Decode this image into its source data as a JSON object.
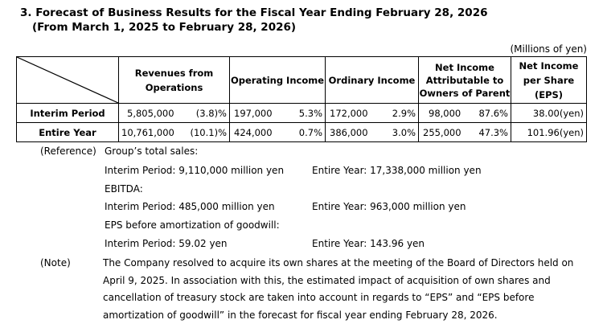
{
  "heading": {
    "line1": "3. Forecast of Business Results for the Fiscal Year Ending February 28, 2026",
    "line2": "(From March 1, 2025 to February 28, 2026)"
  },
  "unit_label": "(Millions of yen)",
  "table": {
    "headers": {
      "revenues": [
        "Revenues from",
        "Operations"
      ],
      "operating_income": "Operating Income",
      "ordinary_income": "Ordinary Income",
      "net_income": [
        "Net Income",
        "Attributable to",
        "Owners of Parent"
      ],
      "eps": [
        "Net Income",
        "per Share",
        "(EPS)"
      ]
    },
    "rows": [
      {
        "label": "Interim Period",
        "revenues": "5,805,000",
        "revenues_pct": "(3.8)%",
        "operating": "197,000",
        "operating_pct": "5.3%",
        "ordinary": "172,000",
        "ordinary_pct": "2.9%",
        "net": "98,000",
        "net_pct": "87.6%",
        "eps": "38.00(yen)"
      },
      {
        "label": "Entire Year",
        "revenues": "10,761,000",
        "revenues_pct": "(10.1)%",
        "operating": "424,000",
        "operating_pct": "0.7%",
        "ordinary": "386,000",
        "ordinary_pct": "3.0%",
        "net": "255,000",
        "net_pct": "47.3%",
        "eps": "101.96(yen)"
      }
    ]
  },
  "reference": {
    "tag": "(Reference)",
    "group_sales_title": "Group’s total sales:",
    "group_sales_interim": "Interim Period: 9,110,000 million yen",
    "group_sales_year": "Entire Year: 17,338,000 million yen",
    "ebitda_title": "EBITDA:",
    "ebitda_interim": "Interim Period: 485,000 million yen",
    "ebitda_year": "Entire Year: 963,000 million yen",
    "eps_goodwill_title": "EPS before amortization of goodwill:",
    "eps_goodwill_interim": "Interim Period: 59.02 yen",
    "eps_goodwill_year": "Entire Year: 143.96 yen"
  },
  "note": {
    "tag": "(Note)",
    "text": "The Company resolved to acquire its own shares at the meeting of the Board of Directors held on April 9, 2025. In association with this, the estimated impact of acquisition of own shares and cancellation of treasury stock are taken into account in regards to “EPS” and “EPS before amortization of goodwill” in the forecast for fiscal year ending February 28, 2026."
  }
}
